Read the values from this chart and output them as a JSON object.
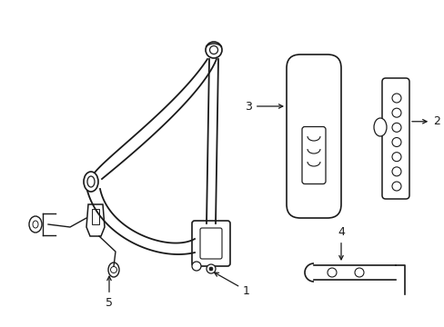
{
  "background": "#ffffff",
  "line_color": "#1a1a1a",
  "label_color": "#1a1a1a",
  "figsize": [
    4.89,
    3.6
  ],
  "dpi": 100
}
